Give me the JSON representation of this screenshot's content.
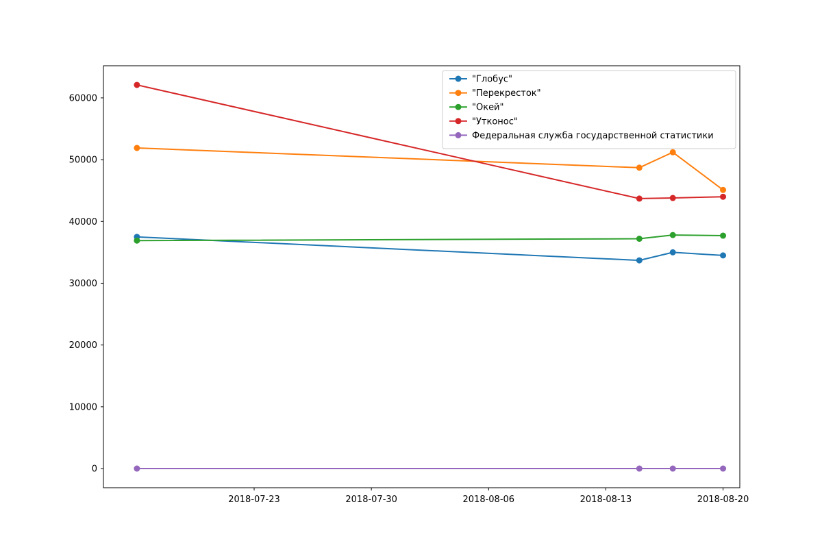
{
  "chart_data": {
    "type": "line",
    "title": "",
    "xlabel": "",
    "ylabel": "",
    "x": [
      "2018-07-16",
      "2018-08-15",
      "2018-08-17",
      "2018-08-20"
    ],
    "xlim": [
      "2018-07-14",
      "2018-08-21"
    ],
    "ylim": [
      -3100,
      65200
    ],
    "x_ticks": [
      "2018-07-23",
      "2018-07-30",
      "2018-08-06",
      "2018-08-13",
      "2018-08-20"
    ],
    "y_ticks": [
      0,
      10000,
      20000,
      30000,
      40000,
      50000,
      60000
    ],
    "grid": false,
    "legend_position": "top-right",
    "series": [
      {
        "name": "\"Глобус\"",
        "color": "#1f77b4",
        "values": [
          37500,
          33700,
          35000,
          34500
        ]
      },
      {
        "name": "\"Перекресток\"",
        "color": "#ff7f0e",
        "values": [
          51900,
          48700,
          51200,
          45100
        ]
      },
      {
        "name": "\"Окей\"",
        "color": "#2ca02c",
        "values": [
          36900,
          37200,
          37800,
          37700
        ]
      },
      {
        "name": "\"Утконос\"",
        "color": "#d62728",
        "values": [
          62100,
          43700,
          43800,
          44000
        ]
      },
      {
        "name": "Федеральная служба государственной статистики",
        "color": "#9467bd",
        "values": [
          0,
          0,
          0,
          0
        ]
      }
    ]
  }
}
